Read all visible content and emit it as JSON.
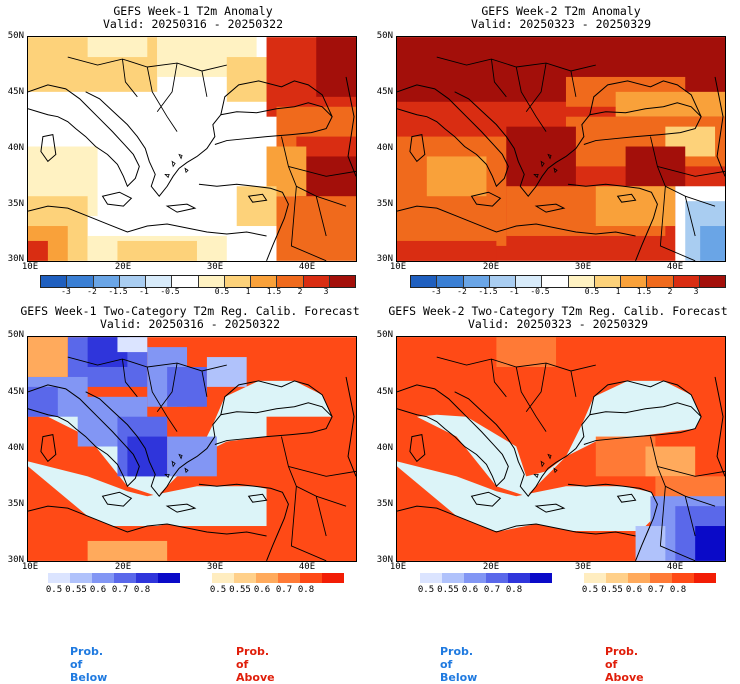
{
  "panels": {
    "top_left": {
      "title_line1": "GEFS Week-1 T2m Anomaly",
      "title_line2": "Valid: 20250316 - 20250322"
    },
    "top_right": {
      "title_line1": "GEFS Week-2 T2m Anomaly",
      "title_line2": "Valid: 20250323 - 20250329"
    },
    "bottom_left": {
      "title_line1": "GEFS Week-1 Two-Category T2m Reg. Calib. Forecast",
      "title_line2": "Valid: 20250316 - 20250322"
    },
    "bottom_right": {
      "title_line1": "GEFS Week-2 Two-Category T2m Reg. Calib. Forecast",
      "title_line2": "Valid: 20250323 - 20250329"
    }
  },
  "lat_labels": [
    "50N",
    "45N",
    "40N",
    "35N",
    "30N"
  ],
  "lon_labels": [
    "10E",
    "20E",
    "30E",
    "40E"
  ],
  "anomaly_colorbar": {
    "labels": [
      "-3",
      "-2",
      "-1.5",
      "-1",
      "-0.5",
      "0.5",
      "1",
      "1.5",
      "2",
      "3"
    ],
    "colors": [
      "#1f5fbf",
      "#3a7fd4",
      "#6aa5e6",
      "#a9cdf1",
      "#d8ebfa",
      "#ffffff",
      "#fff2c2",
      "#fdd27a",
      "#f9a13a",
      "#f06a1c",
      "#d92d12",
      "#a30f0a"
    ]
  },
  "prob_below": {
    "labels": [
      "0.5",
      "0.55",
      "0.6",
      "0.7",
      "0.8"
    ],
    "colors": [
      "#dbe4ff",
      "#b0c2fb",
      "#8296f4",
      "#5a68ea",
      "#2f35db",
      "#0a0ac8"
    ],
    "caption": "Prob. of Below",
    "caption_color": "#1f7ae0"
  },
  "prob_above": {
    "labels": [
      "0.5",
      "0.55",
      "0.6",
      "0.7",
      "0.8"
    ],
    "colors": [
      "#ffedc0",
      "#ffd08a",
      "#ffaa5c",
      "#ff7a36",
      "#ff4a16",
      "#f21d05"
    ],
    "caption": "Prob. of Above",
    "caption_color": "#e01e0a"
  },
  "sea_color": "#dcf4f8"
}
